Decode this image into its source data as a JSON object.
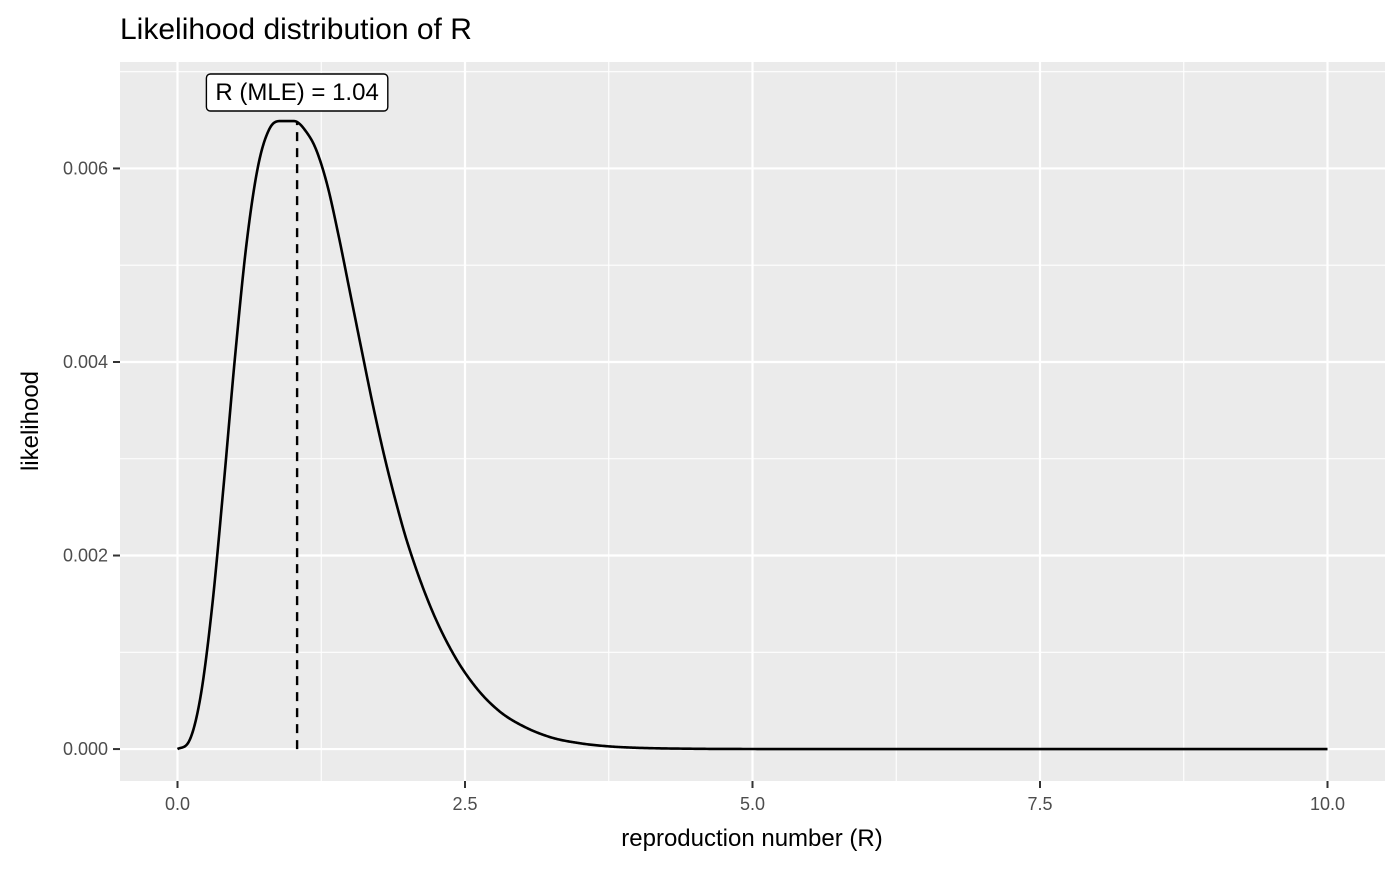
{
  "chart_data": {
    "type": "line",
    "title": "Likelihood distribution of R",
    "xlabel": "reproduction number (R)",
    "ylabel": "likelihood",
    "xlim": [
      -0.5,
      10.5
    ],
    "ylim": [
      -0.00033,
      0.0071
    ],
    "x_ticks": [
      0.0,
      2.5,
      5.0,
      7.5,
      10.0
    ],
    "x_tick_labels": [
      "0.0",
      "2.5",
      "5.0",
      "7.5",
      "10.0"
    ],
    "y_ticks": [
      0.0,
      0.002,
      0.004,
      0.006
    ],
    "y_tick_labels": [
      "0.000",
      "0.002",
      "0.004",
      "0.006"
    ],
    "grid": true,
    "series": [
      {
        "x": [
          0.0,
          0.1,
          0.2,
          0.3,
          0.4,
          0.5,
          0.6,
          0.7,
          0.8,
          0.9,
          1.0,
          1.04,
          1.1,
          1.2,
          1.3,
          1.4,
          1.5,
          1.6,
          1.7,
          1.8,
          1.9,
          2.0,
          2.2,
          2.4,
          2.6,
          2.8,
          3.0,
          3.25,
          3.5,
          3.75,
          4.0,
          4.5,
          5.0,
          5.5,
          6.0,
          7.0,
          8.0,
          9.0,
          10.0
        ],
        "values": [
          0.0,
          8e-05,
          0.00054,
          0.00146,
          0.00271,
          0.00405,
          0.00522,
          0.00602,
          0.00641,
          0.00649,
          0.00649,
          0.00648,
          0.00641,
          0.00621,
          0.00584,
          0.00531,
          0.00472,
          0.00413,
          0.00355,
          0.00302,
          0.00255,
          0.00213,
          0.00147,
          0.00098,
          0.00063,
          0.00039,
          0.00024,
          0.00012,
          6e-05,
          2.8e-05,
          1.3e-05,
          3e-06,
          6e-07,
          1e-07,
          0.0,
          0.0,
          0.0,
          0.0,
          0.0
        ]
      }
    ],
    "annotations": [
      {
        "type": "vline",
        "x": 1.04,
        "y_end": 0.00648,
        "style": "dashed",
        "label": "R (MLE) = 1.04"
      }
    ],
    "colors": {
      "panel": "#ebebeb",
      "grid": "#ffffff",
      "line": "#000000"
    }
  }
}
